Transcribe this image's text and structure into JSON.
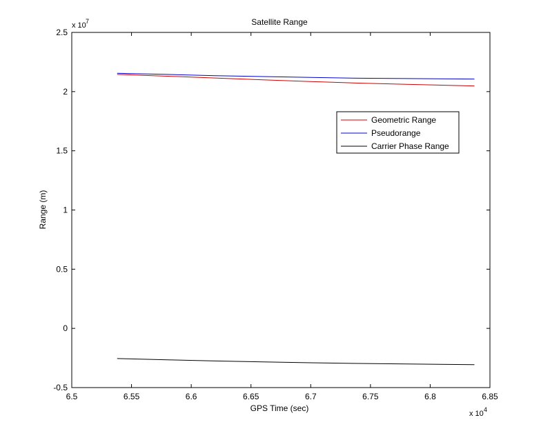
{
  "chart_data": {
    "type": "line",
    "title": "Satellite Range",
    "xlabel": "GPS Time (sec)",
    "ylabel": "Range (m)",
    "x_exponent": {
      "base": "x 10",
      "power": "4"
    },
    "y_exponent": {
      "base": "x 10",
      "power": "7"
    },
    "xlim": [
      65000,
      68500
    ],
    "ylim": [
      -5000000,
      25000000
    ],
    "x_ticks": [
      65000,
      65500,
      66000,
      66500,
      67000,
      67500,
      68000,
      68500
    ],
    "x_tick_labels": [
      "6.5",
      "6.55",
      "6.6",
      "6.65",
      "6.7",
      "6.75",
      "6.8",
      "6.85"
    ],
    "y_ticks": [
      -5000000,
      0,
      5000000,
      10000000,
      15000000,
      20000000,
      25000000
    ],
    "y_tick_labels": [
      "-0.5",
      "0",
      "0.5",
      "1",
      "1.5",
      "2",
      "2.5"
    ],
    "grid": false,
    "legend_position": "upper-right",
    "series": [
      {
        "name": "Geometric Range",
        "color": "#cc0000",
        "x": [
          65380,
          65800,
          66200,
          66600,
          67000,
          67400,
          67800,
          68370
        ],
        "values": [
          21450000,
          21300000,
          21150000,
          21000000,
          20850000,
          20720000,
          20620000,
          20480000
        ]
      },
      {
        "name": "Pseudorange",
        "color": "#0000cc",
        "x": [
          65380,
          65800,
          66200,
          66600,
          67000,
          67400,
          67800,
          68370
        ],
        "values": [
          21550000,
          21450000,
          21350000,
          21270000,
          21200000,
          21130000,
          21100000,
          21060000
        ]
      },
      {
        "name": "Carrier Phase Range",
        "color": "#000000",
        "x": [
          65380,
          65800,
          66200,
          66600,
          67000,
          67400,
          67800,
          68370
        ],
        "values": [
          -2550000,
          -2650000,
          -2750000,
          -2830000,
          -2900000,
          -2960000,
          -3010000,
          -3060000
        ]
      }
    ]
  }
}
